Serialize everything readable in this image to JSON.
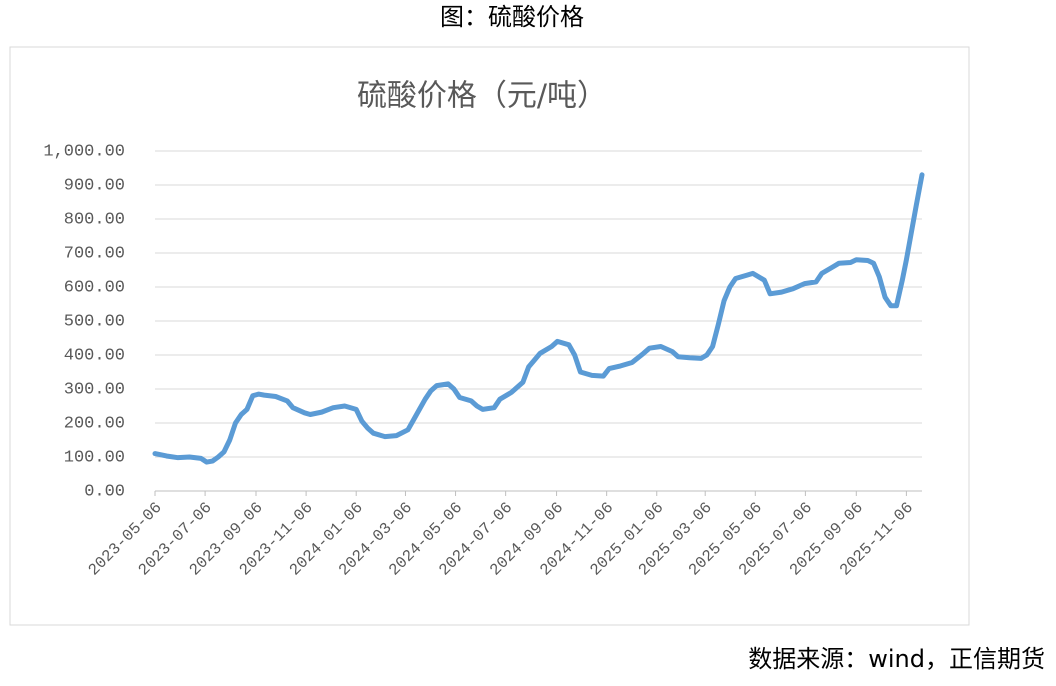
{
  "caption": "图：硫酸价格",
  "source": "数据来源：wind，正信期货",
  "chart_data": {
    "type": "line",
    "title": "硫酸价格（元/吨）",
    "series": [
      {
        "name": "硫酸价格",
        "color": "#5b9bd5",
        "x": [
          "2023-05-06",
          "2023-05-20",
          "2023-06-03",
          "2023-06-17",
          "2023-07-01",
          "2023-07-08",
          "2023-07-15",
          "2023-07-22",
          "2023-07-29",
          "2023-08-05",
          "2023-08-12",
          "2023-08-19",
          "2023-08-26",
          "2023-09-02",
          "2023-09-09",
          "2023-09-16",
          "2023-09-30",
          "2023-10-14",
          "2023-10-21",
          "2023-11-04",
          "2023-11-11",
          "2023-11-25",
          "2023-12-09",
          "2023-12-23",
          "2024-01-06",
          "2024-01-13",
          "2024-01-20",
          "2024-01-27",
          "2024-02-10",
          "2024-02-24",
          "2024-03-09",
          "2024-03-16",
          "2024-03-23",
          "2024-03-30",
          "2024-04-06",
          "2024-04-13",
          "2024-04-27",
          "2024-05-04",
          "2024-05-11",
          "2024-05-25",
          "2024-06-01",
          "2024-06-08",
          "2024-06-22",
          "2024-06-29",
          "2024-07-13",
          "2024-07-27",
          "2024-08-03",
          "2024-08-10",
          "2024-08-17",
          "2024-08-31",
          "2024-09-07",
          "2024-09-21",
          "2024-09-28",
          "2024-10-05",
          "2024-10-19",
          "2024-11-02",
          "2024-11-09",
          "2024-11-23",
          "2024-12-07",
          "2024-12-21",
          "2024-12-28",
          "2025-01-11",
          "2025-01-25",
          "2025-02-01",
          "2025-02-15",
          "2025-03-01",
          "2025-03-08",
          "2025-03-15",
          "2025-03-22",
          "2025-03-29",
          "2025-04-05",
          "2025-04-12",
          "2025-04-26",
          "2025-05-03",
          "2025-05-17",
          "2025-05-24",
          "2025-06-07",
          "2025-06-21",
          "2025-07-05",
          "2025-07-19",
          "2025-07-26",
          "2025-08-09",
          "2025-08-16",
          "2025-08-30",
          "2025-09-06",
          "2025-09-20",
          "2025-09-27",
          "2025-10-04",
          "2025-10-11",
          "2025-10-18",
          "2025-10-25",
          "2025-11-01",
          "2025-11-06",
          "2025-11-12",
          "2025-11-18",
          "2025-11-25"
        ],
        "values": [
          110,
          103,
          98,
          100,
          96,
          85,
          88,
          100,
          115,
          150,
          200,
          225,
          240,
          280,
          285,
          282,
          278,
          265,
          245,
          230,
          225,
          232,
          245,
          250,
          240,
          205,
          185,
          170,
          160,
          163,
          180,
          210,
          240,
          270,
          295,
          310,
          315,
          300,
          275,
          265,
          250,
          240,
          245,
          270,
          290,
          320,
          365,
          385,
          405,
          425,
          440,
          430,
          400,
          350,
          340,
          338,
          360,
          368,
          378,
          405,
          420,
          425,
          410,
          395,
          392,
          390,
          400,
          425,
          490,
          560,
          600,
          625,
          635,
          640,
          620,
          580,
          585,
          595,
          610,
          615,
          640,
          660,
          670,
          672,
          680,
          678,
          670,
          630,
          570,
          545,
          545,
          620,
          680,
          760,
          840,
          930
        ]
      }
    ],
    "xlim": [
      "2023-05-06",
      "2025-11-25"
    ],
    "xticks": [
      "2023-05-06",
      "2023-07-06",
      "2023-09-06",
      "2023-11-06",
      "2024-01-06",
      "2024-03-06",
      "2024-05-06",
      "2024-07-06",
      "2024-09-06",
      "2024-11-06",
      "2025-01-06",
      "2025-03-06",
      "2025-05-06",
      "2025-07-06",
      "2025-09-06",
      "2025-11-06"
    ],
    "ylim": [
      0,
      1000
    ],
    "yticks": [
      {
        "value": 0,
        "label": "0.00"
      },
      {
        "value": 100,
        "label": "100.00"
      },
      {
        "value": 200,
        "label": "200.00"
      },
      {
        "value": 300,
        "label": "300.00"
      },
      {
        "value": 400,
        "label": "400.00"
      },
      {
        "value": 500,
        "label": "500.00"
      },
      {
        "value": 600,
        "label": "600.00"
      },
      {
        "value": 700,
        "label": "700.00"
      },
      {
        "value": 800,
        "label": "800.00"
      },
      {
        "value": 900,
        "label": "900.00"
      },
      {
        "value": 1000,
        "label": "1,000.00"
      }
    ],
    "grid": true
  }
}
